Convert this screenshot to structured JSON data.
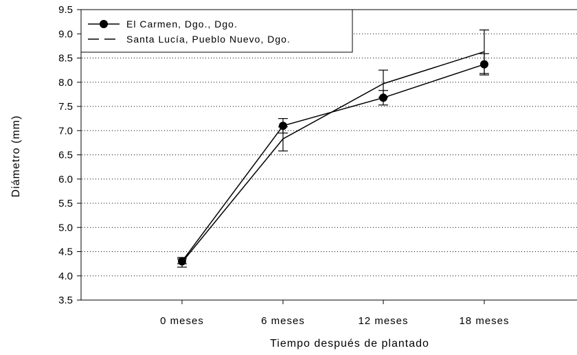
{
  "chart_data": {
    "type": "line",
    "title": "",
    "xlabel": "Tiempo después de plantado",
    "ylabel": "Diámetro (mm)",
    "categories": [
      "0 meses",
      "6 meses",
      "12 meses",
      "18 meses"
    ],
    "ylim": [
      3.5,
      9.5
    ],
    "yticks": [
      "3.5",
      "4.0",
      "4.5",
      "5.0",
      "5.5",
      "6.0",
      "6.5",
      "7.0",
      "7.5",
      "8.0",
      "8.5",
      "9.0",
      "9.5"
    ],
    "grid": "horizontal-dotted",
    "legend_position": "top-left",
    "series": [
      {
        "name": "El Carmen, Dgo., Dgo.",
        "marker": "filled-circle",
        "values": [
          4.3,
          7.1,
          7.68,
          8.37
        ],
        "error": [
          0.05,
          0.15,
          0.15,
          0.22
        ],
        "color": "#000000"
      },
      {
        "name": "Santa Lucía, Pueblo Nuevo, Dgo.",
        "marker": "none",
        "values": [
          4.28,
          6.83,
          7.97,
          8.63
        ],
        "error": [
          0.1,
          0.25,
          0.28,
          0.45
        ],
        "color": "#000000"
      }
    ]
  }
}
